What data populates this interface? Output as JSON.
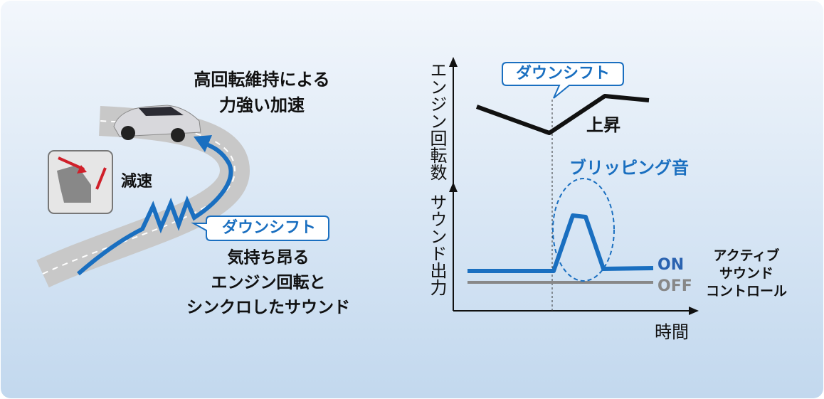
{
  "left": {
    "accel_caption": [
      "高回転維持による",
      "力強い加速"
    ],
    "decel_label": "減速",
    "downshift_callout": "ダウンシフト",
    "sync_caption": [
      "気持ち昂る",
      "エンジン回転と",
      "シンクロしたサウンド"
    ]
  },
  "right": {
    "y_axis_top": "エンジン回転数",
    "y_axis_bottom": "サウンド出力",
    "x_axis": "時間",
    "downshift_callout": "ダウンシフト",
    "rise_label": "上昇",
    "blip_label": "ブリッピング音",
    "on_label": "ON",
    "off_label": "OFF",
    "asc_label": [
      "アクティブ",
      "サウンド",
      "コントロール"
    ]
  }
}
